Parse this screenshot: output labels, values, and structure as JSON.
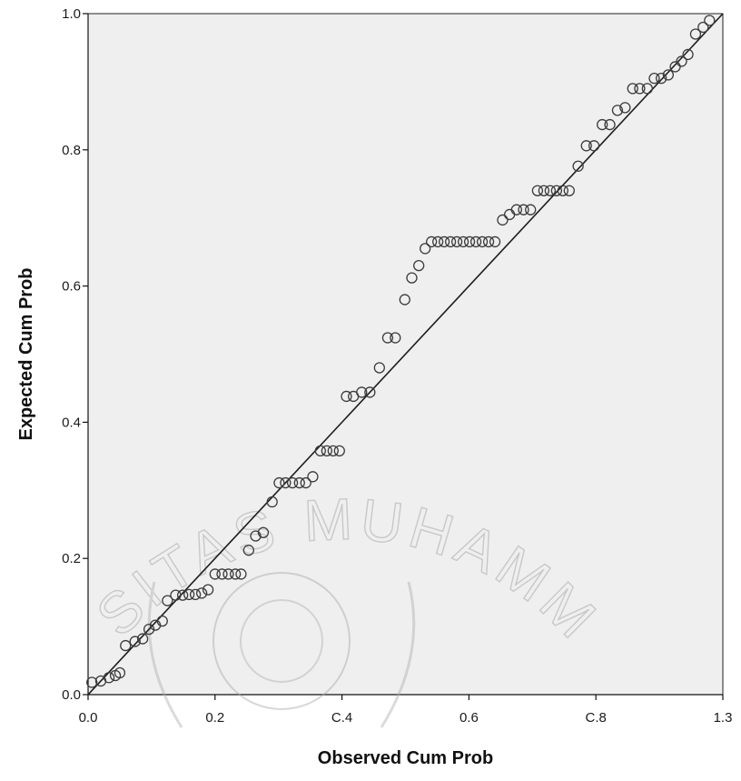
{
  "chart_data": {
    "type": "scatter",
    "title": "",
    "xlabel": "Observed Cum Prob",
    "ylabel": "Expected Cum Prob",
    "xlim": [
      0,
      1
    ],
    "ylim": [
      0,
      1
    ],
    "x_ticks": [
      "0.0",
      "0.2",
      "C.4",
      "0.6",
      "C.8",
      "1.3"
    ],
    "y_ticks": [
      "0.0",
      "0.2",
      "0.4",
      "0.6",
      "0.8",
      "1.0"
    ],
    "reference_line": {
      "from": [
        0,
        0
      ],
      "to": [
        1,
        1
      ]
    },
    "grid": false,
    "colors": {
      "plot_bg": "#efefef",
      "marker": "#3c3c3c",
      "line": "#1e1e1e"
    },
    "points": [
      {
        "x": 0.006,
        "y": 0.018
      },
      {
        "x": 0.02,
        "y": 0.02
      },
      {
        "x": 0.033,
        "y": 0.025
      },
      {
        "x": 0.043,
        "y": 0.028
      },
      {
        "x": 0.05,
        "y": 0.032
      },
      {
        "x": 0.059,
        "y": 0.072
      },
      {
        "x": 0.074,
        "y": 0.078
      },
      {
        "x": 0.086,
        "y": 0.082
      },
      {
        "x": 0.096,
        "y": 0.096
      },
      {
        "x": 0.106,
        "y": 0.102
      },
      {
        "x": 0.117,
        "y": 0.108
      },
      {
        "x": 0.125,
        "y": 0.138
      },
      {
        "x": 0.138,
        "y": 0.146
      },
      {
        "x": 0.149,
        "y": 0.146
      },
      {
        "x": 0.159,
        "y": 0.147
      },
      {
        "x": 0.169,
        "y": 0.147
      },
      {
        "x": 0.179,
        "y": 0.149
      },
      {
        "x": 0.189,
        "y": 0.154
      },
      {
        "x": 0.2,
        "y": 0.177
      },
      {
        "x": 0.211,
        "y": 0.177
      },
      {
        "x": 0.221,
        "y": 0.177
      },
      {
        "x": 0.232,
        "y": 0.177
      },
      {
        "x": 0.241,
        "y": 0.177
      },
      {
        "x": 0.253,
        "y": 0.212
      },
      {
        "x": 0.264,
        "y": 0.233
      },
      {
        "x": 0.276,
        "y": 0.238
      },
      {
        "x": 0.29,
        "y": 0.283
      },
      {
        "x": 0.301,
        "y": 0.311
      },
      {
        "x": 0.311,
        "y": 0.311
      },
      {
        "x": 0.322,
        "y": 0.311
      },
      {
        "x": 0.333,
        "y": 0.311
      },
      {
        "x": 0.343,
        "y": 0.311
      },
      {
        "x": 0.354,
        "y": 0.32
      },
      {
        "x": 0.366,
        "y": 0.358
      },
      {
        "x": 0.376,
        "y": 0.358
      },
      {
        "x": 0.386,
        "y": 0.358
      },
      {
        "x": 0.396,
        "y": 0.358
      },
      {
        "x": 0.407,
        "y": 0.438
      },
      {
        "x": 0.418,
        "y": 0.438
      },
      {
        "x": 0.431,
        "y": 0.444
      },
      {
        "x": 0.444,
        "y": 0.444
      },
      {
        "x": 0.459,
        "y": 0.48
      },
      {
        "x": 0.472,
        "y": 0.524
      },
      {
        "x": 0.484,
        "y": 0.524
      },
      {
        "x": 0.499,
        "y": 0.58
      },
      {
        "x": 0.51,
        "y": 0.612
      },
      {
        "x": 0.521,
        "y": 0.63
      },
      {
        "x": 0.531,
        "y": 0.655
      },
      {
        "x": 0.541,
        "y": 0.665
      },
      {
        "x": 0.551,
        "y": 0.665
      },
      {
        "x": 0.561,
        "y": 0.665
      },
      {
        "x": 0.571,
        "y": 0.665
      },
      {
        "x": 0.581,
        "y": 0.665
      },
      {
        "x": 0.591,
        "y": 0.665
      },
      {
        "x": 0.601,
        "y": 0.665
      },
      {
        "x": 0.611,
        "y": 0.665
      },
      {
        "x": 0.621,
        "y": 0.665
      },
      {
        "x": 0.631,
        "y": 0.665
      },
      {
        "x": 0.641,
        "y": 0.665
      },
      {
        "x": 0.653,
        "y": 0.697
      },
      {
        "x": 0.664,
        "y": 0.705
      },
      {
        "x": 0.675,
        "y": 0.712
      },
      {
        "x": 0.686,
        "y": 0.712
      },
      {
        "x": 0.697,
        "y": 0.712
      },
      {
        "x": 0.708,
        "y": 0.74
      },
      {
        "x": 0.718,
        "y": 0.74
      },
      {
        "x": 0.728,
        "y": 0.74
      },
      {
        "x": 0.738,
        "y": 0.74
      },
      {
        "x": 0.748,
        "y": 0.74
      },
      {
        "x": 0.758,
        "y": 0.74
      },
      {
        "x": 0.772,
        "y": 0.776
      },
      {
        "x": 0.785,
        "y": 0.806
      },
      {
        "x": 0.797,
        "y": 0.806
      },
      {
        "x": 0.81,
        "y": 0.837
      },
      {
        "x": 0.822,
        "y": 0.837
      },
      {
        "x": 0.834,
        "y": 0.858
      },
      {
        "x": 0.846,
        "y": 0.862
      },
      {
        "x": 0.858,
        "y": 0.89
      },
      {
        "x": 0.869,
        "y": 0.89
      },
      {
        "x": 0.881,
        "y": 0.89
      },
      {
        "x": 0.892,
        "y": 0.905
      },
      {
        "x": 0.903,
        "y": 0.905
      },
      {
        "x": 0.914,
        "y": 0.91
      },
      {
        "x": 0.925,
        "y": 0.922
      },
      {
        "x": 0.935,
        "y": 0.93
      },
      {
        "x": 0.945,
        "y": 0.94
      },
      {
        "x": 0.957,
        "y": 0.97
      },
      {
        "x": 0.969,
        "y": 0.98
      },
      {
        "x": 0.979,
        "y": 0.99
      }
    ]
  },
  "watermark": {
    "text": "UNIVERSITAS MUHAMMADIYAH"
  }
}
